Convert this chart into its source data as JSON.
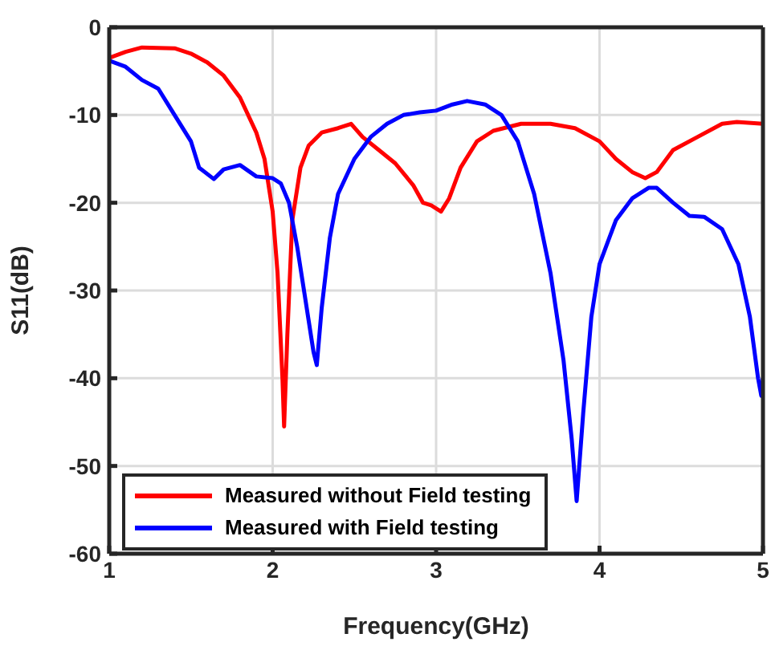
{
  "chart_data": {
    "type": "line",
    "xlabel": "Frequency(GHz)",
    "ylabel": "S11(dB)",
    "xlim": [
      1,
      5
    ],
    "xticks": [
      1,
      2,
      3,
      4,
      5
    ],
    "ylim": [
      -60,
      0
    ],
    "yticks": [
      -60,
      -50,
      -40,
      -30,
      -20,
      -10,
      0
    ],
    "grid": true,
    "legend": "bottom left",
    "marker": "none",
    "line_style": "solid",
    "series": [
      {
        "name": "Measured without Field testing",
        "color": "#ff0000",
        "x": [
          1.0,
          1.1,
          1.2,
          1.4,
          1.5,
          1.6,
          1.7,
          1.8,
          1.9,
          1.95,
          2.0,
          2.03,
          2.06,
          2.07,
          2.09,
          2.12,
          2.17,
          2.22,
          2.3,
          2.4,
          2.48,
          2.55,
          2.65,
          2.75,
          2.86,
          2.92,
          2.97,
          3.03,
          3.08,
          3.15,
          3.25,
          3.35,
          3.52,
          3.6,
          3.7,
          3.85,
          4.0,
          4.1,
          4.2,
          4.28,
          4.35,
          4.45,
          4.6,
          4.75,
          4.84,
          5.0
        ],
        "values": [
          -3.5,
          -2.8,
          -2.3,
          -2.4,
          -3,
          -4,
          -5.5,
          -8,
          -12,
          -15,
          -21,
          -28,
          -40,
          -45.5,
          -35,
          -22,
          -16,
          -13.5,
          -12,
          -11.5,
          -11,
          -12.5,
          -14,
          -15.5,
          -18,
          -20,
          -20.3,
          -21,
          -19.5,
          -16,
          -13,
          -11.8,
          -11,
          -11,
          -11,
          -11.5,
          -13,
          -15,
          -16.5,
          -17.2,
          -16.5,
          -14,
          -12.5,
          -11,
          -10.8,
          -11
        ]
      },
      {
        "name": "Measured with Field testing",
        "color": "#0000ff",
        "x": [
          1.0,
          1.1,
          1.2,
          1.3,
          1.4,
          1.5,
          1.55,
          1.64,
          1.7,
          1.8,
          1.9,
          2.0,
          2.05,
          2.1,
          2.15,
          2.2,
          2.25,
          2.27,
          2.3,
          2.35,
          2.4,
          2.5,
          2.6,
          2.7,
          2.8,
          2.9,
          3.0,
          3.1,
          3.19,
          3.3,
          3.4,
          3.5,
          3.6,
          3.7,
          3.78,
          3.83,
          3.86,
          3.9,
          3.95,
          4.0,
          4.1,
          4.2,
          4.3,
          4.35,
          4.45,
          4.55,
          4.64,
          4.75,
          4.85,
          4.92,
          4.97,
          4.99,
          5.0
        ],
        "values": [
          -3.8,
          -4.5,
          -6,
          -7,
          -10,
          -13,
          -16,
          -17.3,
          -16.2,
          -15.7,
          -17,
          -17.2,
          -17.8,
          -20,
          -25,
          -31,
          -37,
          -38.5,
          -32,
          -24,
          -19,
          -15,
          -12.5,
          -11,
          -10,
          -9.7,
          -9.5,
          -8.8,
          -8.4,
          -8.8,
          -10,
          -13,
          -19,
          -28,
          -38,
          -47,
          -54,
          -44,
          -33,
          -27,
          -22,
          -19.5,
          -18.3,
          -18.3,
          -20,
          -21.5,
          -21.6,
          -23,
          -27,
          -33,
          -40,
          -42,
          -40
        ]
      }
    ]
  }
}
